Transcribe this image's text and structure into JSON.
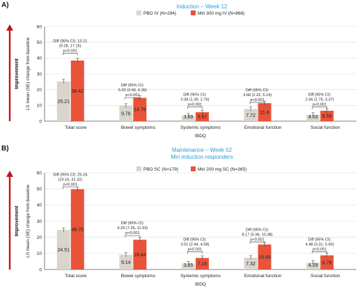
{
  "colors": {
    "pbo": "#d9d5cc",
    "miri": "#e8533a",
    "arrow": "#c4141c",
    "title": "#2a9fd6",
    "grid": "#dddddd"
  },
  "improvement_label": "Improvement",
  "chart_data": [
    {
      "type": "bar",
      "panel": "A)",
      "title": "Induction – Week 12",
      "subtitle": "",
      "xlabel": "IBDQ",
      "ylabel": "LS mean (SE) change from baseline",
      "ylim": [
        0,
        60
      ],
      "yticks": [
        0,
        10,
        20,
        30,
        40,
        50,
        60
      ],
      "grid": true,
      "legend_position": "top-center",
      "categories": [
        "Total score",
        "Bowel symptoms",
        "Systemic symptoms",
        "Emotional function",
        "Social function"
      ],
      "series": [
        {
          "name": "PBO IV (N=294)",
          "values": [
            25.21,
            9.76,
            3.59,
            7.72,
            4.03
          ],
          "labels": [
            "25.21",
            "9.76",
            "3.59",
            "7.72",
            "4.03"
          ]
        },
        {
          "name": "Miri 300 mg IV (N=868)",
          "values": [
            38.42,
            14.78,
            5.67,
            11.4,
            6.59
          ],
          "labels": [
            "38.42",
            "14.78",
            "5.67",
            "11.4",
            "6.59"
          ]
        }
      ],
      "annotations": [
        {
          "lines": [
            "Diff (95% CI): 13.21",
            "(9.28, 17.15)",
            "p<0.001"
          ],
          "y": 50
        },
        {
          "lines": [
            "Diff (95% CI):",
            "5.02 (3.66, 6.39)",
            "p<0.001"
          ],
          "y": 22
        },
        {
          "lines": [
            "Diff (95% CI):",
            "2.08 (1.39, 2.76)",
            "p<0.001"
          ],
          "y": 16
        },
        {
          "lines": [
            "Diff (95% CI):",
            "3.68 (2.22, 5.14)",
            "p<0.001"
          ],
          "y": 19
        },
        {
          "lines": [
            "Diff (95% CI):",
            "2.56 (1.75, 3.37)",
            "p<0.001"
          ],
          "y": 16
        }
      ]
    },
    {
      "type": "bar",
      "panel": "B)",
      "title": "Maintenance – Week 52",
      "subtitle": "Miri induction responders",
      "xlabel": "IBDQ",
      "ylabel": "LS mean (SE) change from baseline",
      "ylim": [
        0,
        60
      ],
      "yticks": [
        0,
        10,
        20,
        30,
        40,
        50,
        60
      ],
      "grid": true,
      "legend_position": "top-center",
      "categories": [
        "Total score",
        "Bowel symptoms",
        "Systemic symptoms",
        "Emotional function",
        "Social function"
      ],
      "series": [
        {
          "name": "PBO SC (N=179)",
          "values": [
            24.51,
            9.14,
            3.65,
            7.32,
            4.29
          ],
          "labels": [
            "24.51",
            "9.14",
            "3.65",
            "7.32",
            "4.29"
          ]
        },
        {
          "name": "Miri 200 mg SC (N=365)",
          "values": [
            49.75,
            18.44,
            7.16,
            15.49,
            8.78
          ],
          "labels": [
            "49.75",
            "18.44",
            "7.16",
            "15.49",
            "8.78"
          ]
        }
      ],
      "annotations": [
        {
          "lines": [
            "Diff (95% CI): 25.24",
            "(19.16, 31.32)",
            "p<0.001"
          ],
          "y": 58
        },
        {
          "lines": [
            "Diff (95% CI):",
            "9.29 (7.26, 11.33)",
            "p<0.001"
          ],
          "y": 28
        },
        {
          "lines": [
            "Diff (95% CI):",
            "3.51 (2.44, 4.58)",
            "p<0.001"
          ],
          "y": 18
        },
        {
          "lines": [
            "Diff (95% CI):",
            "8.17 (5.96, 10.38)",
            "p<0.001"
          ],
          "y": 24
        },
        {
          "lines": [
            "Diff (95% CI):",
            "4.48 (3.31, 5.65)",
            "p<0.001"
          ],
          "y": 18
        }
      ]
    }
  ]
}
